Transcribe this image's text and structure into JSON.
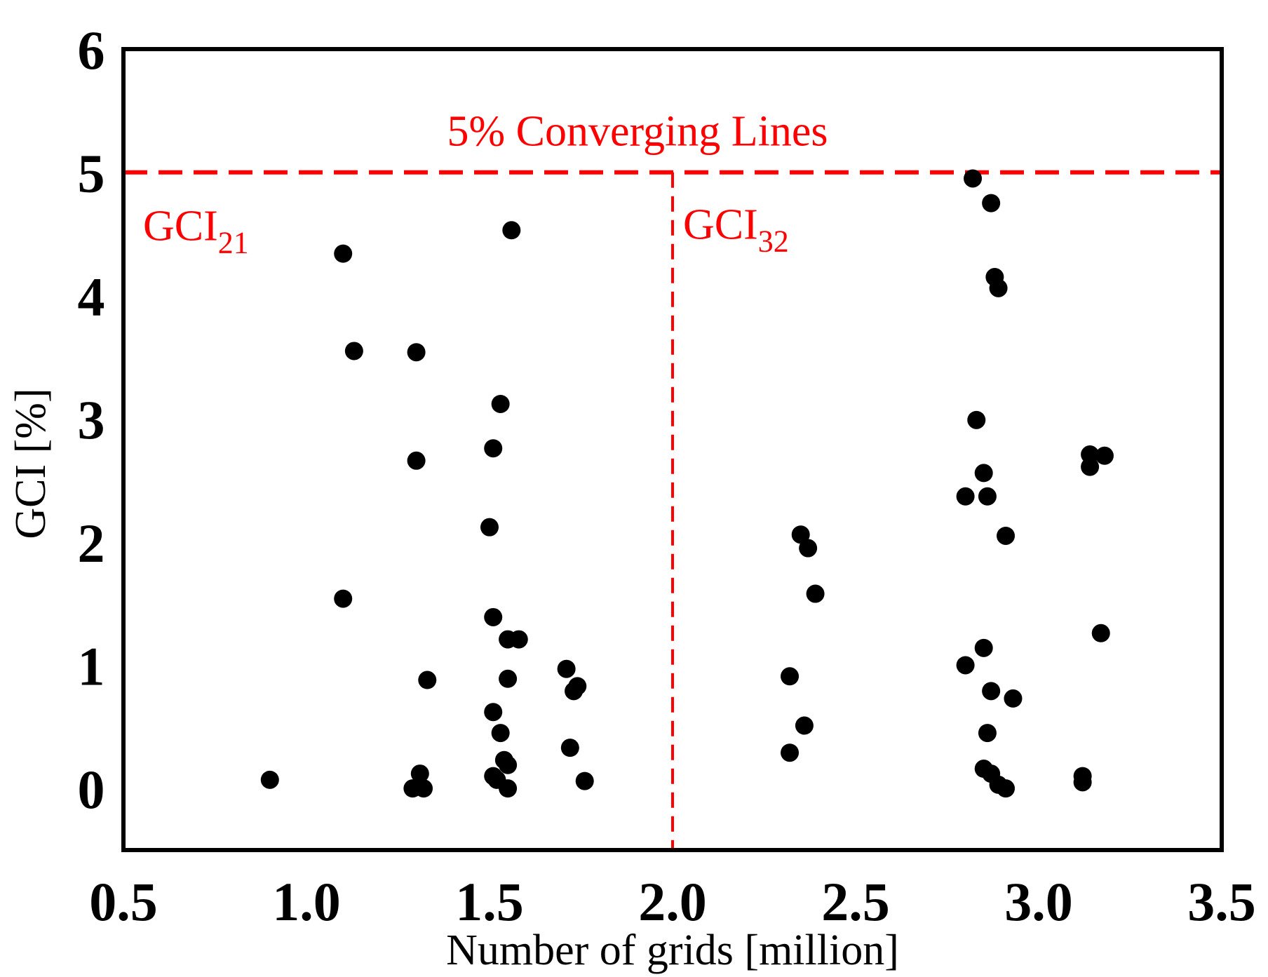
{
  "chart_data": {
    "type": "scatter",
    "title": "",
    "xlabel": "Number of grids [million]",
    "ylabel": "GCI [%]",
    "xlim": [
      0.5,
      3.5
    ],
    "ylim": [
      -0.5,
      6
    ],
    "xticks": [
      "0.5",
      "1.0",
      "1.5",
      "2.0",
      "2.5",
      "3.0",
      "3.5"
    ],
    "yticks": [
      "0",
      "1",
      "2",
      "3",
      "4",
      "5",
      "6"
    ],
    "colors": {
      "points": "#000000",
      "reference": "#ff0000",
      "frame": "#000000"
    },
    "reference_lines": {
      "title": "5% Converging Lines",
      "horizontal_value": 5,
      "vertical_value": 2.0,
      "left_label": {
        "main": "GCI",
        "sub": "21"
      },
      "right_label": {
        "main": "GCI",
        "sub": "32"
      }
    },
    "series": [
      {
        "name": "GCI21",
        "points": [
          [
            0.9,
            0.07
          ],
          [
            1.1,
            4.34
          ],
          [
            1.13,
            3.55
          ],
          [
            1.1,
            1.54
          ],
          [
            1.3,
            3.54
          ],
          [
            1.3,
            2.66
          ],
          [
            1.29,
            0.0
          ],
          [
            1.31,
            0.12
          ],
          [
            1.32,
            0.0
          ],
          [
            1.33,
            0.88
          ],
          [
            1.5,
            2.12
          ],
          [
            1.51,
            2.76
          ],
          [
            1.53,
            3.12
          ],
          [
            1.51,
            1.39
          ],
          [
            1.51,
            0.62
          ],
          [
            1.53,
            0.45
          ],
          [
            1.54,
            0.23
          ],
          [
            1.55,
            0.19
          ],
          [
            1.51,
            0.1
          ],
          [
            1.52,
            0.07
          ],
          [
            1.55,
            0.0
          ],
          [
            1.55,
            1.21
          ],
          [
            1.58,
            1.21
          ],
          [
            1.55,
            0.89
          ],
          [
            1.56,
            4.53
          ],
          [
            1.71,
            0.97
          ],
          [
            1.73,
            0.79
          ],
          [
            1.74,
            0.83
          ],
          [
            1.72,
            0.33
          ],
          [
            1.76,
            0.06
          ]
        ]
      },
      {
        "name": "GCI32",
        "points": [
          [
            2.35,
            2.06
          ],
          [
            2.37,
            1.95
          ],
          [
            2.39,
            1.58
          ],
          [
            2.32,
            0.91
          ],
          [
            2.36,
            0.51
          ],
          [
            2.32,
            0.29
          ],
          [
            2.82,
            4.95
          ],
          [
            2.87,
            4.75
          ],
          [
            2.88,
            4.15
          ],
          [
            2.89,
            4.06
          ],
          [
            2.83,
            2.99
          ],
          [
            2.85,
            2.56
          ],
          [
            2.8,
            2.37
          ],
          [
            2.86,
            2.37
          ],
          [
            2.91,
            2.05
          ],
          [
            2.85,
            1.14
          ],
          [
            2.8,
            1.0
          ],
          [
            2.87,
            0.79
          ],
          [
            2.93,
            0.73
          ],
          [
            2.86,
            0.45
          ],
          [
            2.85,
            0.16
          ],
          [
            2.87,
            0.12
          ],
          [
            2.89,
            0.03
          ],
          [
            2.91,
            0.0
          ],
          [
            3.14,
            2.71
          ],
          [
            3.18,
            2.7
          ],
          [
            3.14,
            2.61
          ],
          [
            3.17,
            1.26
          ],
          [
            3.12,
            0.1
          ],
          [
            3.12,
            0.05
          ]
        ]
      }
    ]
  }
}
